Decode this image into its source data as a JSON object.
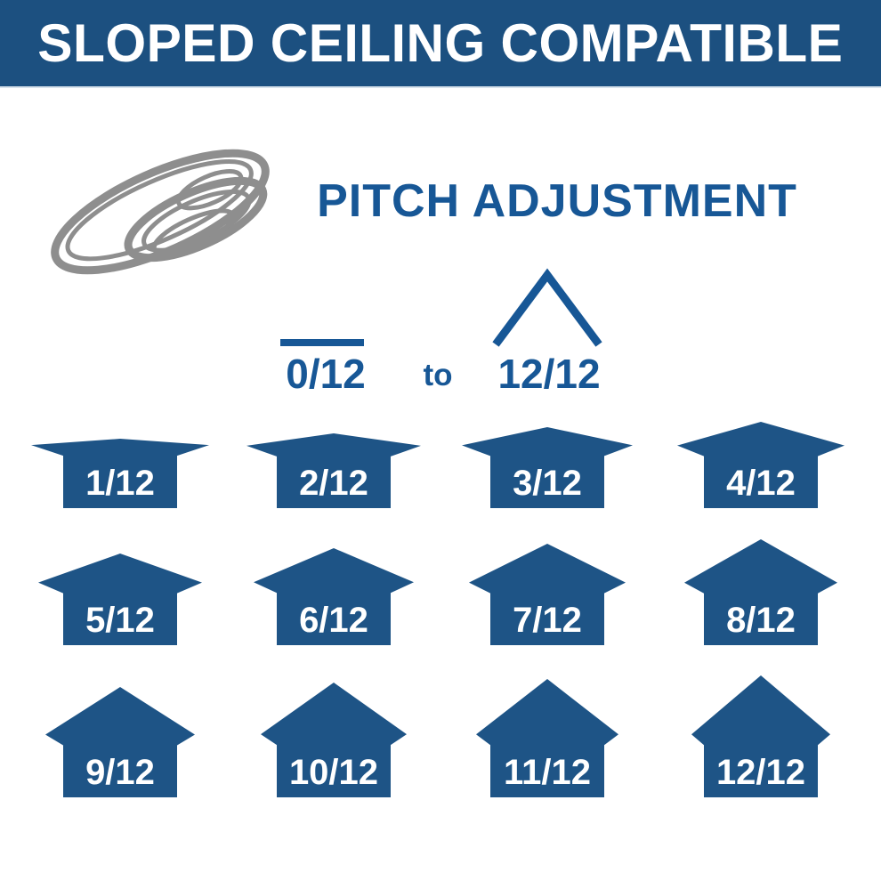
{
  "banner": {
    "title": "SLOPED CEILING COMPATIBLE"
  },
  "fixture": {
    "icon": "recessed-eyeball-downlight-icon"
  },
  "pitch_section": {
    "heading": "PITCH ADJUSTMENT",
    "min_label": "0/12",
    "connector": "to",
    "max_label": "12/12",
    "min_icon": "flat-roof-line-icon",
    "max_icon": "peak-roof-chevron-icon"
  },
  "houses": [
    {
      "label": "1/12",
      "pitch": 1
    },
    {
      "label": "2/12",
      "pitch": 2
    },
    {
      "label": "3/12",
      "pitch": 3
    },
    {
      "label": "4/12",
      "pitch": 4
    },
    {
      "label": "5/12",
      "pitch": 5
    },
    {
      "label": "6/12",
      "pitch": 6
    },
    {
      "label": "7/12",
      "pitch": 7
    },
    {
      "label": "8/12",
      "pitch": 8
    },
    {
      "label": "9/12",
      "pitch": 9
    },
    {
      "label": "10/12",
      "pitch": 10
    },
    {
      "label": "11/12",
      "pitch": 11
    },
    {
      "label": "12/12",
      "pitch": 12
    }
  ],
  "colors": {
    "banner_bg": "#1c5080",
    "banner_text": "#ffffff",
    "accent_blue": "#175796",
    "house_blue": "#1e5486",
    "fixture_gray": "#8e8e8e",
    "label_white": "#ffffff"
  }
}
